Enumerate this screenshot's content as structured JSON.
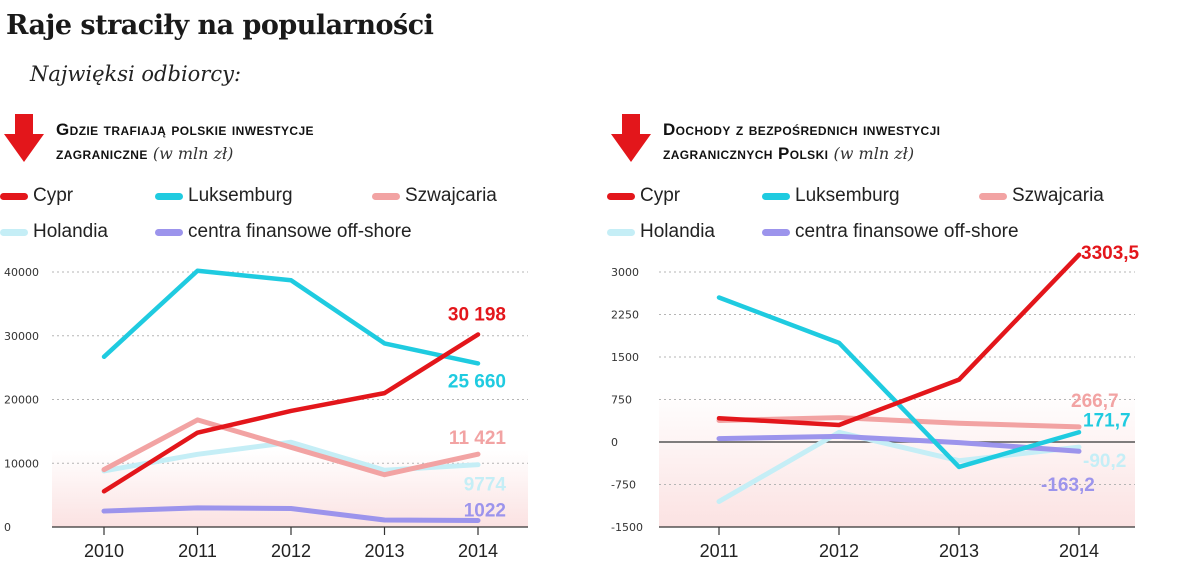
{
  "page": {
    "title": "Raje straciły na popularności",
    "subtitle": "Najwięksi odbiorcy:"
  },
  "colors": {
    "Cypr": "#e3161b",
    "Luksemburg": "#1fcbe0",
    "Szwajcaria": "#f2a3a3",
    "Holandia": "#c5eef6",
    "centra finansowe off-shore": "#9c94ec",
    "arrow": "#e3161b",
    "band": "#fbe2e2"
  },
  "legend": [
    {
      "label": "Cypr",
      "key": "Cypr"
    },
    {
      "label": "Luksemburg",
      "key": "Luksemburg"
    },
    {
      "label": "Szwajcaria",
      "key": "Szwajcaria"
    },
    {
      "label": "Holandia",
      "key": "Holandia"
    },
    {
      "label": "centra finansowe off-shore",
      "key": "centra finansowe off-shore"
    }
  ],
  "chart_data": [
    {
      "type": "line",
      "title_line1": "Gdzie trafiają polskie inwestycje",
      "title_line2": "zagraniczne",
      "unit": "(w mln zł)",
      "x": [
        "2010",
        "2011",
        "2012",
        "2013",
        "2014"
      ],
      "ylim": [
        0,
        40000
      ],
      "yticks": [
        0,
        10000,
        20000,
        30000,
        40000
      ],
      "ytick_labels": [
        "0",
        "10000",
        "20000",
        "30000",
        "40000"
      ],
      "grid": true,
      "series": [
        {
          "name": "Cypr",
          "values": [
            5600,
            14800,
            18200,
            21000,
            30198
          ]
        },
        {
          "name": "Luksemburg",
          "values": [
            26700,
            40200,
            38700,
            28800,
            25660
          ]
        },
        {
          "name": "Szwajcaria",
          "values": [
            9000,
            16800,
            12500,
            8200,
            11421
          ]
        },
        {
          "name": "Holandia",
          "values": [
            8800,
            11400,
            13300,
            8900,
            9774
          ]
        },
        {
          "name": "centra finansowe off-shore",
          "values": [
            2500,
            3000,
            2900,
            1100,
            1022
          ]
        }
      ],
      "data_labels": [
        {
          "series": "Cypr",
          "text": "30 198"
        },
        {
          "series": "Luksemburg",
          "text": "25 660"
        },
        {
          "series": "Szwajcaria",
          "text": "11 421"
        },
        {
          "series": "Holandia",
          "text": "9774"
        },
        {
          "series": "centra finansowe off-shore",
          "text": "1022"
        }
      ]
    },
    {
      "type": "line",
      "title_line1": "Dochody z bezpośrednich inwestycji",
      "title_line2": "zagranicznych Polski",
      "unit": "(w mln zł)",
      "x": [
        "2011",
        "2012",
        "2013",
        "2014"
      ],
      "ylim": [
        -1500,
        3000
      ],
      "yticks": [
        -1500,
        -750,
        0,
        750,
        1500,
        2250,
        3000
      ],
      "ytick_labels": [
        "-1500",
        "-750",
        "0",
        "750",
        "1500",
        "2250",
        "3000"
      ],
      "grid": true,
      "series": [
        {
          "name": "Cypr",
          "values": [
            420,
            300,
            1100,
            3303.5
          ]
        },
        {
          "name": "Luksemburg",
          "values": [
            2550,
            1750,
            -440,
            171.7
          ]
        },
        {
          "name": "Szwajcaria",
          "values": [
            380,
            430,
            330,
            266.7
          ]
        },
        {
          "name": "Holandia",
          "values": [
            -1050,
            170,
            -330,
            -90.2
          ]
        },
        {
          "name": "centra finansowe off-shore",
          "values": [
            60,
            100,
            -10,
            -163.2
          ]
        }
      ],
      "data_labels": [
        {
          "series": "Cypr",
          "text": "3303,5"
        },
        {
          "series": "Szwajcaria",
          "text": "266,7"
        },
        {
          "series": "Luksemburg",
          "text": "171,7"
        },
        {
          "series": "Holandia",
          "text": "-90,2"
        },
        {
          "series": "centra finansowe off-shore",
          "text": "-163,2"
        }
      ]
    }
  ]
}
